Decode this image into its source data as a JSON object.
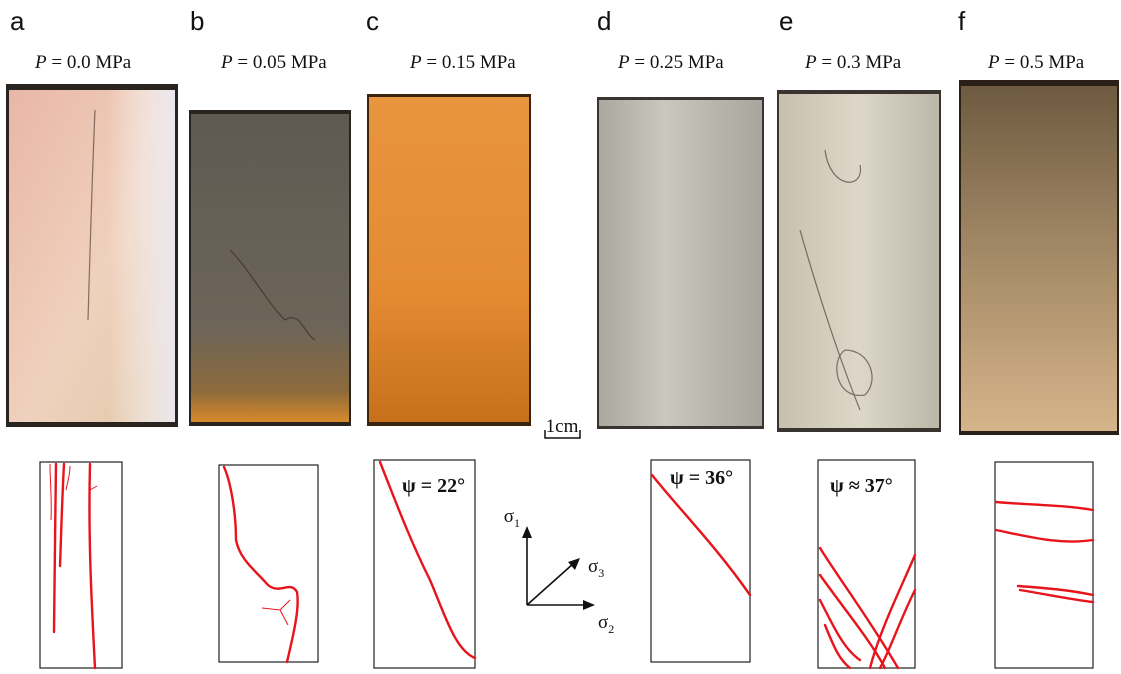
{
  "panels": [
    {
      "letter": "a",
      "pressure": {
        "symbol": "P",
        "text": "= 0.0 MPa"
      }
    },
    {
      "letter": "b",
      "pressure": {
        "symbol": "P",
        "text": "= 0.05 MPa"
      }
    },
    {
      "letter": "c",
      "pressure": {
        "symbol": "P",
        "text": "= 0.15 MPa"
      },
      "angle": "ψ = 22°"
    },
    {
      "letter": "d",
      "pressure": {
        "symbol": "P",
        "text": "= 0.25 MPa"
      },
      "angle": "ψ = 36°"
    },
    {
      "letter": "e",
      "pressure": {
        "symbol": "P",
        "text": "= 0.3 MPa"
      },
      "angle": "ψ ≈ 37°"
    },
    {
      "letter": "f",
      "pressure": {
        "symbol": "P",
        "text": "= 0.5 MPa"
      }
    }
  ],
  "scale_bar": "1cm",
  "stress_axes": [
    {
      "symbol": "σ",
      "subscript": "1"
    },
    {
      "symbol": "σ",
      "subscript": "3"
    },
    {
      "symbol": "σ",
      "subscript": "2"
    }
  ]
}
